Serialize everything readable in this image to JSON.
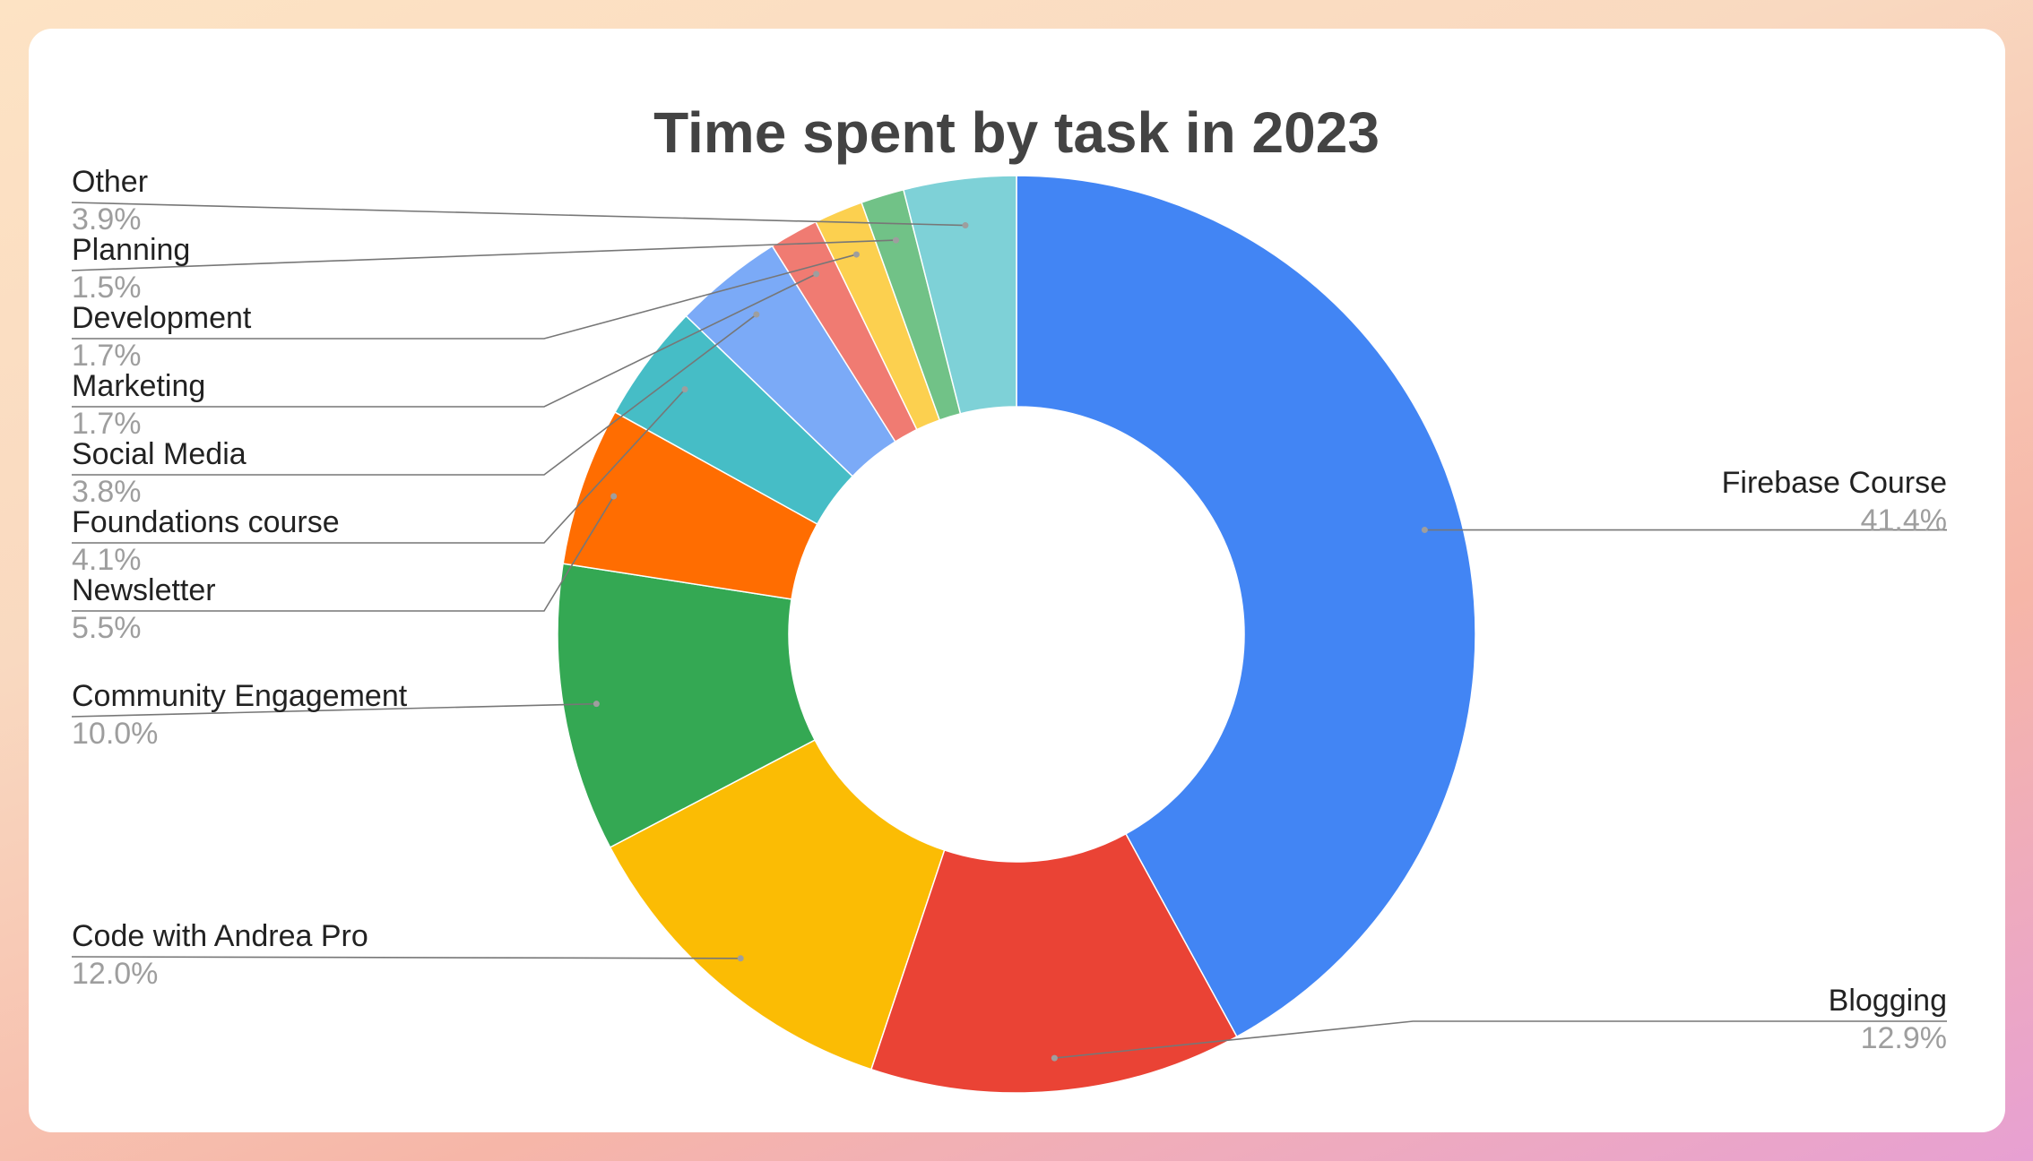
{
  "chart_data": {
    "type": "pie",
    "variant": "donut",
    "title": "Time spent by task in 2023",
    "slices": [
      {
        "label": "Firebase Course",
        "value": 41.4,
        "pct_label": "41.4%",
        "color": "#4285f4"
      },
      {
        "label": "Blogging",
        "value": 12.9,
        "pct_label": "12.9%",
        "color": "#ea4335"
      },
      {
        "label": "Code with Andrea Pro",
        "value": 12.0,
        "pct_label": "12.0%",
        "color": "#fbbc04"
      },
      {
        "label": "Community Engagement",
        "value": 10.0,
        "pct_label": "10.0%",
        "color": "#34a853"
      },
      {
        "label": "Newsletter",
        "value": 5.5,
        "pct_label": "5.5%",
        "color": "#ff6d01"
      },
      {
        "label": "Foundations course",
        "value": 4.1,
        "pct_label": "4.1%",
        "color": "#46bdc6"
      },
      {
        "label": "Social Media",
        "value": 3.8,
        "pct_label": "3.8%",
        "color": "#7baaf7"
      },
      {
        "label": "Marketing",
        "value": 1.7,
        "pct_label": "1.7%",
        "color": "#f07b72"
      },
      {
        "label": "Development",
        "value": 1.7,
        "pct_label": "1.7%",
        "color": "#fcd04f"
      },
      {
        "label": "Planning",
        "value": 1.5,
        "pct_label": "1.5%",
        "color": "#71c287"
      },
      {
        "label": "Other",
        "value": 3.9,
        "pct_label": "3.9%",
        "color": "#7ed1d7"
      }
    ],
    "legend": "labels with leader lines"
  }
}
